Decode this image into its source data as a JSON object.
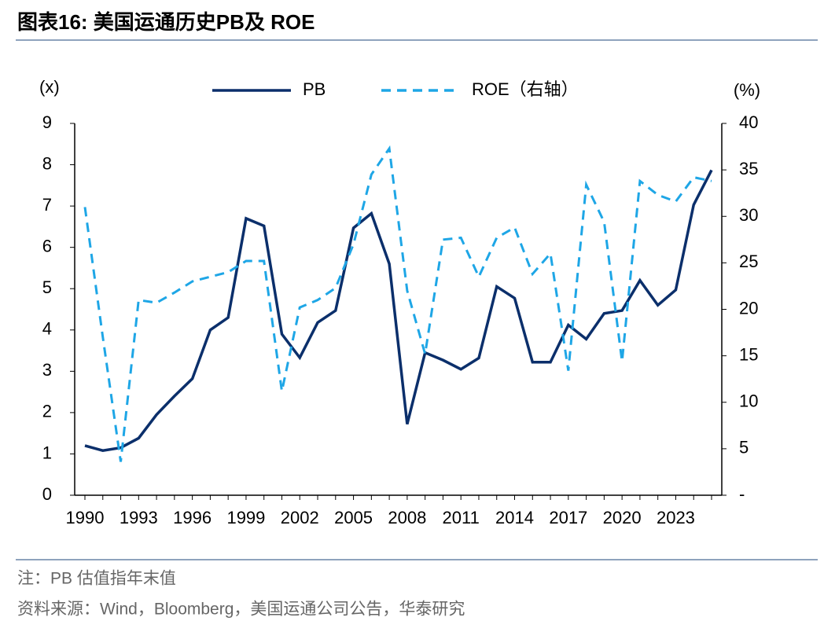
{
  "chart_data": {
    "type": "line",
    "title": "图表16:  美国运通历史PB及 ROE",
    "y_label": "(x)",
    "y2_label": "(%)",
    "note": "注：PB 估值指年末值",
    "source": "资料来源：Wind，Bloomberg，美国运通公司公告，华泰研究",
    "categories": [
      "1990",
      null,
      null,
      "1993",
      null,
      null,
      "1996",
      null,
      null,
      "1999",
      null,
      null,
      "2002",
      null,
      null,
      "2005",
      null,
      null,
      "2008",
      null,
      null,
      "2011",
      null,
      null,
      "2014",
      null,
      null,
      "2017",
      null,
      null,
      "2020",
      null,
      null,
      "2023",
      null,
      null
    ],
    "series": [
      {
        "name": "PB",
        "color": "#0b2f6b",
        "dash": false,
        "values": [
          1.2,
          1.08,
          1.15,
          1.38,
          1.95,
          2.4,
          2.82,
          4.0,
          4.3,
          6.7,
          6.52,
          3.9,
          3.33,
          4.18,
          4.47,
          6.47,
          6.82,
          5.6,
          1.72,
          3.45,
          3.27,
          3.05,
          3.32,
          5.05,
          4.77,
          3.22,
          3.22,
          4.12,
          3.78,
          4.4,
          4.47,
          5.2,
          4.6,
          4.97,
          7.03,
          7.87
        ]
      },
      {
        "name": "ROE（右轴）",
        "color": "#1ea6e6",
        "dash": true,
        "axis": "y2",
        "values": [
          31,
          17,
          3.6,
          21,
          20.7,
          21.8,
          23,
          23.5,
          24,
          25.2,
          25.2,
          11.2,
          20.2,
          21,
          22.3,
          27,
          34.5,
          37.3,
          22,
          15.2,
          27.5,
          27.7,
          23.5,
          27.7,
          28.8,
          23.8,
          26,
          13.4,
          33.4,
          29.4,
          14.4,
          33.8,
          32.3,
          31.6,
          34.2,
          33.8
        ]
      }
    ],
    "ylim": [
      0,
      9
    ],
    "yticks": [
      0,
      1,
      2,
      3,
      4,
      5,
      6,
      7,
      8,
      9
    ],
    "y2lim": [
      0,
      40
    ],
    "y2ticks": [
      {
        "value": 0,
        "label": "-"
      },
      5,
      10,
      15,
      20,
      25,
      30,
      35,
      40
    ]
  }
}
